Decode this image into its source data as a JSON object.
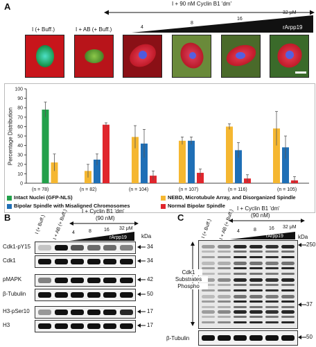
{
  "panel_a": {
    "letter": "A",
    "header": "I + 90 nM Cyclin B1 'dm'",
    "unit": "32 μM",
    "wedge_label": "rArpp19",
    "doses": [
      "4",
      "8",
      "16"
    ],
    "image_labels": [
      "I (+ Buff.)",
      "I + AB (+ Buff.)"
    ],
    "n_labels": [
      "(n = 78)",
      "(n = 82)",
      "(n = 104)",
      "(n = 107)",
      "(n = 116)",
      "(n = 105)"
    ],
    "legend": [
      {
        "label": "Intact Nuclei (GFP-NLS)",
        "color": "#22a04a"
      },
      {
        "label": "NEBD, Microtubule Array, and Disorganized Spindle",
        "color": "#f5b731"
      },
      {
        "label": "Bipolar Spindle with Misaligned Chromosomes",
        "color": "#1f6fb6"
      },
      {
        "label": "Normal Bipolar Spindle",
        "color": "#e0262d"
      }
    ]
  },
  "chart_data": {
    "type": "bar",
    "ylabel": "Percentage Distribution",
    "ylim": [
      0,
      100
    ],
    "yticks": [
      0,
      10,
      20,
      30,
      40,
      50,
      60,
      70,
      80,
      90,
      100
    ],
    "groups": 6,
    "series": [
      {
        "name": "Intact Nuclei (GFP-NLS)",
        "color": "#22a04a",
        "values": [
          78,
          0,
          0,
          0,
          0,
          0
        ],
        "errors": [
          8,
          0,
          0,
          0,
          0,
          0
        ]
      },
      {
        "name": "NEBD, Microtubule Array, and Disorganized Spindle",
        "color": "#f5b731",
        "values": [
          22,
          13,
          49,
          45,
          60,
          58
        ],
        "errors": [
          9,
          7,
          12,
          4,
          3,
          18
        ]
      },
      {
        "name": "Bipolar Spindle with Misaligned Chromosomes",
        "color": "#1f6fb6",
        "values": [
          0,
          25,
          42,
          45,
          35,
          38
        ],
        "errors": [
          0,
          6,
          15,
          4,
          8,
          12
        ]
      },
      {
        "name": "Normal Bipolar Spindle",
        "color": "#e0262d",
        "values": [
          0,
          62,
          8,
          11,
          5,
          3
        ],
        "errors": [
          0,
          2,
          5,
          4,
          4,
          4
        ]
      }
    ]
  },
  "panel_b": {
    "letter": "B",
    "header": "I + Cyclin B1 'dm'",
    "subheader": "(90 nM)",
    "col_labels": [
      "I (+ Buff.)",
      "I + AB (+ Buff.)",
      "4",
      "8",
      "16",
      "32 μM"
    ],
    "wedge_label": "rArpp19",
    "kda": "kDa",
    "rows": [
      {
        "label": "Cdk1-pY15",
        "kda": "34"
      },
      {
        "label": "Cdk1",
        "kda": "34"
      },
      {
        "label": "pMAPK",
        "kda": "42"
      },
      {
        "label": "β-Tubulin",
        "kda": "50"
      },
      {
        "label": "H3-pSer10",
        "kda": "17"
      },
      {
        "label": "H3",
        "kda": "17"
      }
    ]
  },
  "panel_c": {
    "letter": "C",
    "header": "I + Cyclin B1 'dm'",
    "subheader": "(90 nM)",
    "col_labels": [
      "I (+ Buff.)",
      "I + AB (+ Buff.)",
      "4",
      "8",
      "16",
      "32 μM"
    ],
    "wedge_label": "rArpp19",
    "kda": "kDa",
    "markers": [
      "250",
      "37"
    ],
    "side_label": [
      "Cdk1",
      "Substrates",
      "Phospho"
    ],
    "tubulin_label": "β-Tubulin",
    "tubulin_kda": "50"
  }
}
